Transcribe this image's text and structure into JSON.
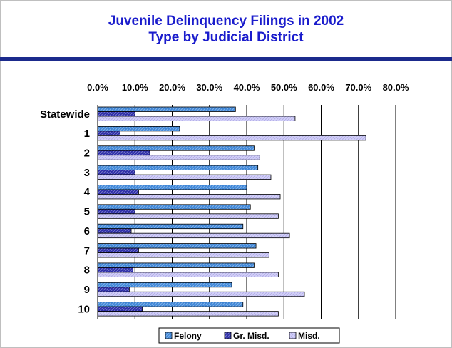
{
  "title_line1": "Juvenile Delinquency Filings in 2002",
  "title_line2": "Type by Judicial District",
  "colors": {
    "title": "#1a1ccc",
    "rule": "#1b2a8c",
    "felony": "#3f87d8",
    "gr_misd": "#2d2ea8",
    "misd": "#d2d0f8"
  },
  "chart_data": {
    "type": "bar",
    "orientation": "horizontal",
    "title": "Juvenile Delinquency Filings in 2002 Type by Judicial District",
    "categories": [
      "Statewide",
      "1",
      "2",
      "3",
      "4",
      "5",
      "6",
      "7",
      "8",
      "9",
      "10"
    ],
    "series": [
      {
        "name": "Felony",
        "values": [
          0.37,
          0.22,
          0.42,
          0.43,
          0.4,
          0.41,
          0.39,
          0.425,
          0.42,
          0.36,
          0.39
        ]
      },
      {
        "name": "Gr. Misd.",
        "values": [
          0.1,
          0.06,
          0.14,
          0.1,
          0.11,
          0.1,
          0.09,
          0.11,
          0.095,
          0.085,
          0.12
        ]
      },
      {
        "name": "Misd.",
        "values": [
          0.53,
          0.72,
          0.435,
          0.465,
          0.49,
          0.485,
          0.515,
          0.46,
          0.485,
          0.555,
          0.485
        ]
      }
    ],
    "xlim": [
      0,
      0.8
    ],
    "xticks": [
      "0.0%",
      "10.0%",
      "20.0%",
      "30.0%",
      "40.0%",
      "50.0%",
      "60.0%",
      "70.0%",
      "80.0%"
    ],
    "xaxis_position": "top",
    "grid": true,
    "legend": "bottom"
  }
}
